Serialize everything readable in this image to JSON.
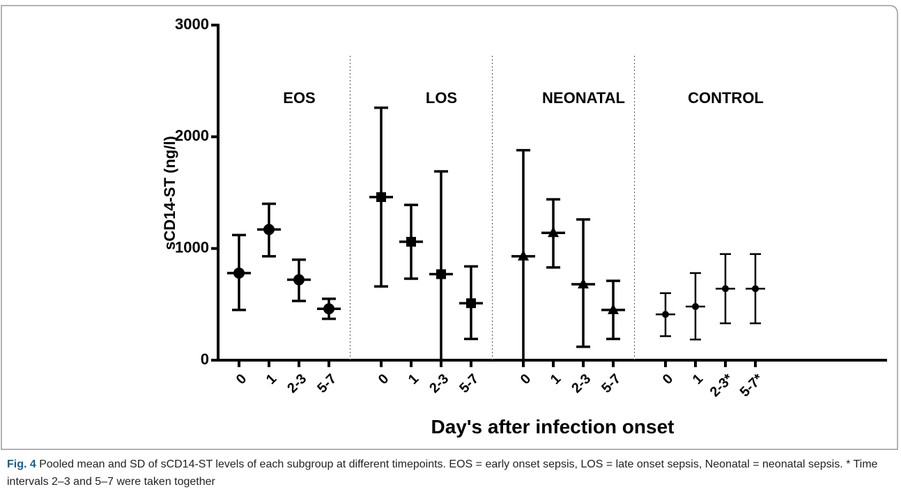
{
  "chart_data": {
    "type": "errorbar",
    "ylabel": "sCD14-ST (ng/l)",
    "xlabel": "Day's after infection onset",
    "ylim": [
      0,
      3000
    ],
    "yticks": [
      0,
      1000,
      2000,
      3000
    ],
    "series": [
      {
        "name": "EOS",
        "marker": "circle",
        "color": "#000000",
        "categories": [
          "0",
          "1",
          "2-3",
          "5-7"
        ],
        "values": [
          780,
          1170,
          720,
          460
        ],
        "low": [
          450,
          930,
          530,
          370
        ],
        "high": [
          1120,
          1400,
          900,
          550
        ]
      },
      {
        "name": "LOS",
        "marker": "square",
        "color": "#000000",
        "categories": [
          "0",
          "1",
          "2-3",
          "5-7"
        ],
        "values": [
          1460,
          1060,
          770,
          510
        ],
        "low": [
          660,
          730,
          0,
          190
        ],
        "high": [
          2260,
          1390,
          1690,
          840
        ]
      },
      {
        "name": "NEONATAL",
        "marker": "triangle",
        "color": "#000000",
        "categories": [
          "0",
          "1",
          "2-3",
          "5-7"
        ],
        "values": [
          930,
          1140,
          680,
          450
        ],
        "low": [
          0,
          830,
          120,
          190
        ],
        "high": [
          1880,
          1440,
          1260,
          710
        ]
      },
      {
        "name": "CONTROL",
        "marker": "dot",
        "color": "#000000",
        "categories": [
          "0",
          "1",
          "2-3*",
          "5-7*"
        ],
        "values": [
          410,
          480,
          640,
          640
        ],
        "low": [
          215,
          185,
          330,
          330
        ],
        "high": [
          600,
          780,
          950,
          950
        ]
      }
    ],
    "caption_label": "Fig. 4",
    "caption": "Pooled mean and SD of sCD14-ST levels of each subgroup at different timepoints. EOS = early onset sepsis, LOS = late onset sepsis, Neonatal = neonatal sepsis. * Time intervals 2–3 and 5–7 were taken together"
  }
}
